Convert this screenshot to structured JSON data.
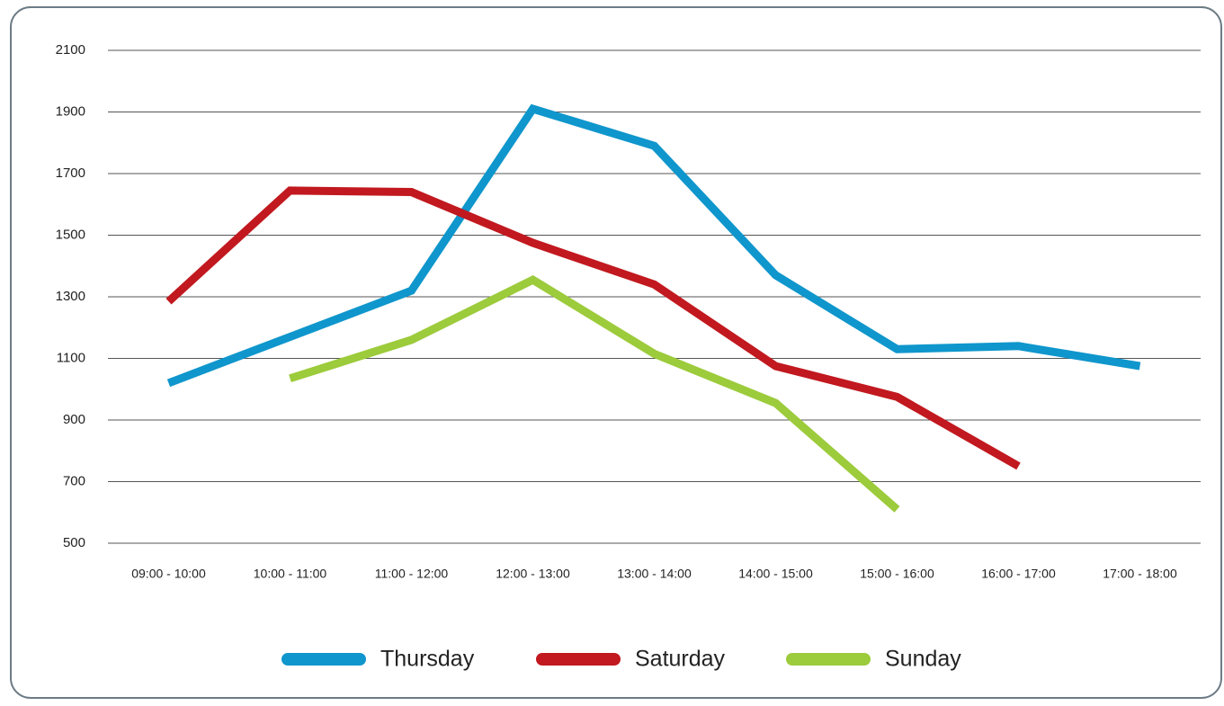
{
  "chart_data": {
    "type": "line",
    "categories": [
      "09:00 - 10:00",
      "10:00 - 11:00",
      "11:00 - 12:00",
      "12:00 - 13:00",
      "13:00 - 14:00",
      "14:00 - 15:00",
      "15:00 - 16:00",
      "16:00 - 17:00",
      "17:00 - 18:00"
    ],
    "series": [
      {
        "name": "Thursday",
        "color": "#0f96cc",
        "values": [
          1020,
          1170,
          1320,
          1910,
          1790,
          1370,
          1130,
          1140,
          1075
        ]
      },
      {
        "name": "Saturday",
        "color": "#c1191f",
        "values": [
          1285,
          1645,
          1640,
          1475,
          1340,
          1075,
          975,
          750,
          null
        ]
      },
      {
        "name": "Sunday",
        "color": "#9ccb3b",
        "values": [
          null,
          1035,
          1160,
          1355,
          1115,
          955,
          610,
          null,
          null
        ]
      }
    ],
    "ylim": [
      500,
      2100
    ],
    "yticks": [
      500,
      700,
      900,
      1100,
      1300,
      1500,
      1700,
      1900,
      2100
    ],
    "grid": true,
    "legend": "bottom"
  }
}
